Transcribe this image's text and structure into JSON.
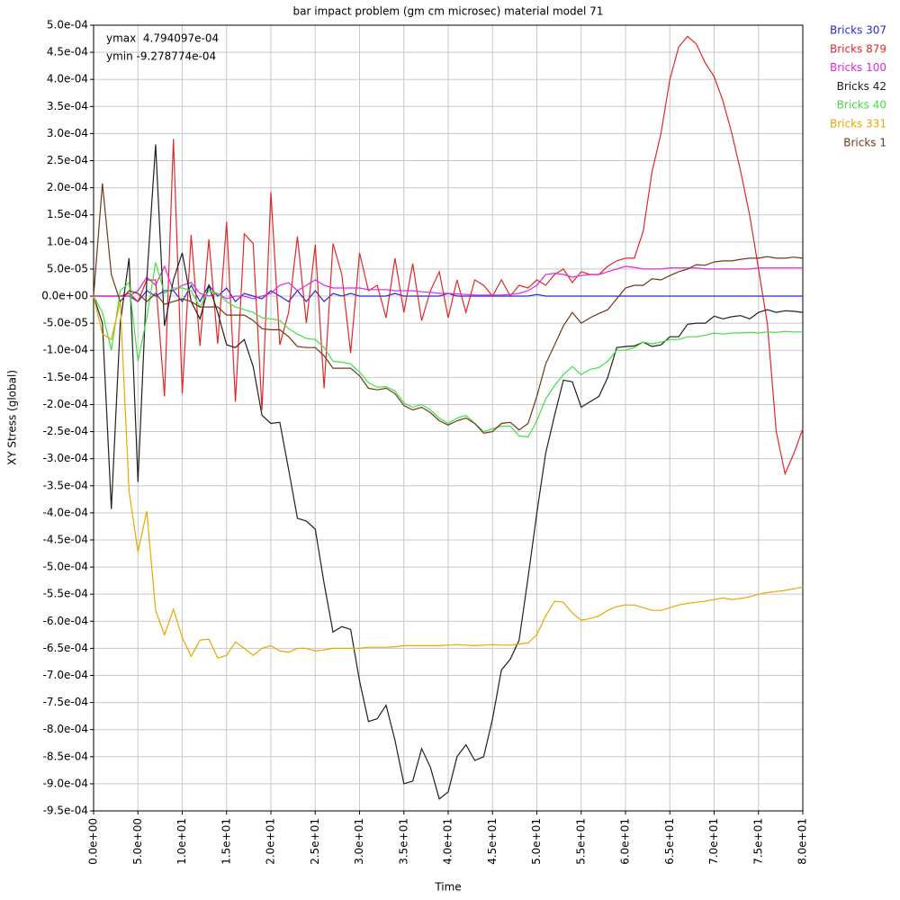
{
  "chart_data": {
    "type": "line",
    "title": "bar impact problem (gm cm microsec) material model 71",
    "xlabel": "Time",
    "ylabel": "XY Stress (global)",
    "annotations": [
      "ymax  4.794097e-04",
      "ymin -9.278774e-04"
    ],
    "grid": true,
    "x": [
      0,
      1,
      2,
      3,
      4,
      5,
      6,
      7,
      8,
      9,
      10,
      11,
      12,
      13,
      14,
      15,
      16,
      17,
      18,
      19,
      20,
      21,
      22,
      23,
      24,
      25,
      26,
      27,
      28,
      29,
      30,
      31,
      32,
      33,
      34,
      35,
      36,
      37,
      38,
      39,
      40,
      41,
      42,
      43,
      44,
      45,
      46,
      47,
      48,
      49,
      50,
      51,
      52,
      53,
      54,
      55,
      56,
      57,
      58,
      59,
      60,
      61,
      62,
      63,
      64,
      65,
      66,
      67,
      68,
      69,
      70,
      71,
      72,
      73,
      74,
      75,
      76,
      77,
      78,
      79,
      80
    ],
    "xlim": [
      0,
      80
    ],
    "xticks": [
      {
        "value": 0,
        "label": "0.0e+00"
      },
      {
        "value": 5,
        "label": "5.0e+00"
      },
      {
        "value": 10,
        "label": "1.0e+01"
      },
      {
        "value": 15,
        "label": "1.5e+01"
      },
      {
        "value": 20,
        "label": "2.0e+01"
      },
      {
        "value": 25,
        "label": "2.5e+01"
      },
      {
        "value": 30,
        "label": "3.0e+01"
      },
      {
        "value": 35,
        "label": "3.5e+01"
      },
      {
        "value": 40,
        "label": "4.0e+01"
      },
      {
        "value": 45,
        "label": "4.5e+01"
      },
      {
        "value": 50,
        "label": "5.0e+01"
      },
      {
        "value": 55,
        "label": "5.5e+01"
      },
      {
        "value": 60,
        "label": "6.0e+01"
      },
      {
        "value": 65,
        "label": "6.5e+01"
      },
      {
        "value": 70,
        "label": "7.0e+01"
      },
      {
        "value": 75,
        "label": "7.5e+01"
      },
      {
        "value": 80,
        "label": "8.0e+01"
      }
    ],
    "ylim": [
      -0.00095,
      0.0005
    ],
    "yticks": [
      {
        "value": 0.0005,
        "label": "5.0e-04"
      },
      {
        "value": 0.00045,
        "label": "4.5e-04"
      },
      {
        "value": 0.0004,
        "label": "4.0e-04"
      },
      {
        "value": 0.00035,
        "label": "3.5e-04"
      },
      {
        "value": 0.0003,
        "label": "3.0e-04"
      },
      {
        "value": 0.00025,
        "label": "2.5e-04"
      },
      {
        "value": 0.0002,
        "label": "2.0e-04"
      },
      {
        "value": 0.00015,
        "label": "1.5e-04"
      },
      {
        "value": 0.0001,
        "label": "1.0e-04"
      },
      {
        "value": 5e-05,
        "label": "5.0e-05"
      },
      {
        "value": 0,
        "label": "0.0e+00"
      },
      {
        "value": -5e-05,
        "label": "-5.0e-05"
      },
      {
        "value": -0.0001,
        "label": "-1.0e-04"
      },
      {
        "value": -0.00015,
        "label": "-1.5e-04"
      },
      {
        "value": -0.0002,
        "label": "-2.0e-04"
      },
      {
        "value": -0.00025,
        "label": "-2.5e-04"
      },
      {
        "value": -0.0003,
        "label": "-3.0e-04"
      },
      {
        "value": -0.00035,
        "label": "-3.5e-04"
      },
      {
        "value": -0.0004,
        "label": "-4.0e-04"
      },
      {
        "value": -0.00045,
        "label": "-4.5e-04"
      },
      {
        "value": -0.0005,
        "label": "-5.0e-04"
      },
      {
        "value": -0.00055,
        "label": "-5.5e-04"
      },
      {
        "value": -0.0006,
        "label": "-6.0e-04"
      },
      {
        "value": -0.00065,
        "label": "-6.5e-04"
      },
      {
        "value": -0.0007,
        "label": "-7.0e-04"
      },
      {
        "value": -0.00075,
        "label": "-7.5e-04"
      },
      {
        "value": -0.0008,
        "label": "-8.0e-04"
      },
      {
        "value": -0.00085,
        "label": "-8.5e-04"
      },
      {
        "value": -0.0009,
        "label": "-9.0e-04"
      },
      {
        "value": -0.00095,
        "label": "-9.5e-04"
      }
    ],
    "series": [
      {
        "name": "Bricks 307",
        "color": "#2828d8",
        "values": [
          0,
          0,
          0,
          0,
          0,
          -1e-05,
          1e-05,
          0,
          1e-05,
          1e-05,
          -1e-05,
          2e-05,
          -1e-05,
          2e-05,
          0,
          1.5e-05,
          -1e-05,
          5e-06,
          0,
          -5e-06,
          1e-05,
          0,
          -1e-05,
          1e-05,
          -1e-05,
          1e-05,
          -1e-05,
          5e-06,
          0,
          5e-06,
          0,
          0,
          0,
          0,
          5e-06,
          0,
          0,
          0,
          0,
          0,
          5e-06,
          0,
          0,
          0,
          0,
          0,
          0,
          0,
          0,
          0,
          3e-06,
          0,
          0,
          0,
          0,
          0,
          0,
          0,
          0,
          0,
          0,
          0,
          0,
          0,
          0,
          0,
          0,
          0,
          0,
          0,
          0,
          0,
          0,
          0,
          0,
          0,
          0,
          0,
          0,
          0,
          0
        ]
      },
      {
        "name": "Bricks 879",
        "color": "#e02828",
        "values": [
          0,
          0,
          0,
          0,
          5e-06,
          -1e-05,
          3e-05,
          3e-05,
          -0.000185,
          0.00029,
          -0.00018,
          0.000113,
          -9.2e-05,
          0.000105,
          -8.8e-05,
          0.000137,
          -0.000195,
          0.000115,
          9.7e-05,
          -0.00021,
          0.000192,
          -9e-05,
          -3e-05,
          0.00011,
          -5e-05,
          9.5e-05,
          -0.00017,
          9.7e-05,
          4e-05,
          -0.000105,
          8e-05,
          1e-05,
          2e-05,
          -4e-05,
          7e-05,
          -3e-05,
          6e-05,
          -4.5e-05,
          1e-05,
          4.5e-05,
          -4e-05,
          3e-05,
          -3e-05,
          3e-05,
          2e-05,
          0,
          3e-05,
          0,
          2e-05,
          1.5e-05,
          3e-05,
          2e-05,
          4e-05,
          5e-05,
          2.5e-05,
          4.5e-05,
          4e-05,
          4e-05,
          5.5e-05,
          6.5e-05,
          7e-05,
          7e-05,
          0.00012,
          0.00023,
          0.0003,
          0.0004,
          0.00046,
          0.0004794097,
          0.000465,
          0.00043,
          0.000405,
          0.00036,
          0.0003,
          0.00023,
          0.00015,
          5e-05,
          -5e-05,
          -0.00025,
          -0.000328,
          -0.00029,
          -0.000245
        ]
      },
      {
        "name": "Bricks 100",
        "color": "#e028e0",
        "values": [
          0,
          0,
          0,
          0,
          0,
          1e-05,
          3.5e-05,
          2e-05,
          5.5e-05,
          1e-05,
          2e-05,
          2.5e-05,
          5e-06,
          0,
          5e-06,
          -5e-06,
          0,
          0,
          -5e-06,
          0,
          5e-06,
          2e-05,
          2.5e-05,
          1e-05,
          2e-05,
          3e-05,
          2e-05,
          1.5e-05,
          1.5e-05,
          1.5e-05,
          1.5e-05,
          1.2e-05,
          1.2e-05,
          1.2e-05,
          1e-05,
          1e-05,
          1e-05,
          8e-06,
          7e-06,
          5e-06,
          5e-06,
          4e-06,
          3e-06,
          2e-06,
          2e-06,
          2e-06,
          2e-06,
          3e-06,
          5e-06,
          1e-05,
          2e-05,
          4e-05,
          4.2e-05,
          4e-05,
          3.5e-05,
          3.8e-05,
          4e-05,
          4e-05,
          4.5e-05,
          5e-05,
          5.5e-05,
          5.3e-05,
          5e-05,
          5e-05,
          5e-05,
          5.2e-05,
          5.2e-05,
          5.2e-05,
          5.2e-05,
          5e-05,
          5e-05,
          5e-05,
          5e-05,
          5e-05,
          5e-05,
          5.2e-05,
          5.2e-05,
          5.2e-05,
          5.2e-05,
          5.2e-05,
          5.2e-05
        ]
      },
      {
        "name": "Bricks 42",
        "color": "#202020",
        "values": [
          0,
          -5e-05,
          -0.000393,
          -5e-05,
          7e-05,
          -0.000343,
          3e-05,
          0.00028,
          -5.5e-05,
          3e-05,
          8e-05,
          -1e-05,
          -4.2e-05,
          2e-05,
          -3e-05,
          -9e-05,
          -9.5e-05,
          -8e-05,
          -0.00013,
          -0.00022,
          -0.000235,
          -0.000233,
          -0.00032,
          -0.00041,
          -0.000415,
          -0.00043,
          -0.00053,
          -0.00062,
          -0.00061,
          -0.000615,
          -0.00071,
          -0.000785,
          -0.00078,
          -0.000755,
          -0.00082,
          -0.0009,
          -0.000895,
          -0.000835,
          -0.00087,
          -0.0009278774,
          -0.000915,
          -0.00085,
          -0.000828,
          -0.000857,
          -0.00085,
          -0.00078,
          -0.00069,
          -0.00067,
          -0.000635,
          -0.00052,
          -0.0004,
          -0.00029,
          -0.00022,
          -0.000155,
          -0.000158,
          -0.000205,
          -0.000195,
          -0.000185,
          -0.00015,
          -9.5e-05,
          -9.3e-05,
          -9.2e-05,
          -8.5e-05,
          -9.3e-05,
          -9e-05,
          -7.5e-05,
          -7.5e-05,
          -5.2e-05,
          -5e-05,
          -5e-05,
          -3.7e-05,
          -4.2e-05,
          -3.8e-05,
          -3.6e-05,
          -4.2e-05,
          -3e-05,
          -2.5e-05,
          -3e-05,
          -2.7e-05,
          -2.8e-05,
          -3e-05
        ]
      },
      {
        "name": "Bricks 40",
        "color": "#40e040",
        "values": [
          0,
          -3e-05,
          -0.0001,
          1e-05,
          2.5e-05,
          -0.00012,
          -4e-05,
          6.2e-05,
          5e-06,
          1.5e-05,
          1.5e-05,
          1e-05,
          -2e-05,
          1e-05,
          5e-06,
          -1e-05,
          -2e-05,
          -2.5e-05,
          -3e-05,
          -4e-05,
          -4.2e-05,
          -4.5e-05,
          -6e-05,
          -7e-05,
          -7.8e-05,
          -8e-05,
          -9.5e-05,
          -0.00012,
          -0.000122,
          -0.000125,
          -0.00014,
          -0.00016,
          -0.000168,
          -0.000167,
          -0.000175,
          -0.000197,
          -0.000205,
          -0.0002,
          -0.00021,
          -0.000225,
          -0.000235,
          -0.000225,
          -0.00022,
          -0.000235,
          -0.00025,
          -0.000245,
          -0.00024,
          -0.00024,
          -0.000258,
          -0.00026,
          -0.00023,
          -0.00019,
          -0.000165,
          -0.000145,
          -0.00013,
          -0.000145,
          -0.000135,
          -0.000132,
          -0.00012,
          -0.0001,
          -0.0001,
          -9.5e-05,
          -8.5e-05,
          -8.8e-05,
          -8.5e-05,
          -8e-05,
          -8e-05,
          -7.5e-05,
          -7.5e-05,
          -7.2e-05,
          -6.8e-05,
          -7e-05,
          -6.8e-05,
          -6.8e-05,
          -6.7e-05,
          -6.8e-05,
          -6.6e-05,
          -6.7e-05,
          -6.5e-05,
          -6.6e-05,
          -6.6e-05
        ]
      },
      {
        "name": "Bricks 331",
        "color": "#e8a800",
        "values": [
          0,
          -7e-05,
          -8e-05,
          -1e-05,
          -0.00036,
          -0.000472,
          -0.000397,
          -0.00058,
          -0.000625,
          -0.000578,
          -0.00063,
          -0.000665,
          -0.000635,
          -0.000633,
          -0.000668,
          -0.000663,
          -0.000638,
          -0.00065,
          -0.000663,
          -0.00065,
          -0.000645,
          -0.000655,
          -0.000657,
          -0.00065,
          -0.00065,
          -0.000655,
          -0.000653,
          -0.00065,
          -0.00065,
          -0.00065,
          -0.00065,
          -0.000648,
          -0.000648,
          -0.000648,
          -0.000647,
          -0.000645,
          -0.000645,
          -0.000645,
          -0.000645,
          -0.000645,
          -0.000644,
          -0.000643,
          -0.000644,
          -0.000645,
          -0.000644,
          -0.000643,
          -0.000644,
          -0.000644,
          -0.000642,
          -0.00064,
          -0.000625,
          -0.00059,
          -0.000563,
          -0.000565,
          -0.000585,
          -0.000598,
          -0.000595,
          -0.00059,
          -0.00058,
          -0.000573,
          -0.00057,
          -0.00057,
          -0.000575,
          -0.00058,
          -0.00058,
          -0.000575,
          -0.00057,
          -0.000567,
          -0.000565,
          -0.000563,
          -0.00056,
          -0.000557,
          -0.00056,
          -0.000558,
          -0.000555,
          -0.00055,
          -0.000547,
          -0.000545,
          -0.000543,
          -0.00054,
          -0.000537
        ]
      },
      {
        "name": "Bricks 1",
        "color": "#703818",
        "values": [
          0,
          0.000208,
          4e-05,
          -1e-05,
          1e-05,
          5e-06,
          -1e-05,
          5e-06,
          -1.5e-05,
          -1e-05,
          -5e-06,
          -1e-05,
          -2e-05,
          -2e-05,
          -2e-05,
          -3.5e-05,
          -3.5e-05,
          -3.5e-05,
          -4.5e-05,
          -6e-05,
          -6.2e-05,
          -6.2e-05,
          -7.5e-05,
          -9.3e-05,
          -9.5e-05,
          -9.5e-05,
          -0.00011,
          -0.000133,
          -0.000133,
          -0.000133,
          -0.000147,
          -0.00017,
          -0.000173,
          -0.00017,
          -0.00018,
          -0.000202,
          -0.00021,
          -0.000205,
          -0.000215,
          -0.00023,
          -0.000238,
          -0.00023,
          -0.000225,
          -0.000235,
          -0.000253,
          -0.00025,
          -0.000235,
          -0.000233,
          -0.000247,
          -0.000235,
          -0.000185,
          -0.000125,
          -9e-05,
          -5.5e-05,
          -3e-05,
          -5e-05,
          -4e-05,
          -3.2e-05,
          -2.5e-05,
          -5e-06,
          1.5e-05,
          2e-05,
          2e-05,
          3.2e-05,
          3e-05,
          3.8e-05,
          4.5e-05,
          5e-05,
          5.8e-05,
          5.7e-05,
          6.3e-05,
          6.5e-05,
          6.5e-05,
          6.8e-05,
          7e-05,
          7e-05,
          7.3e-05,
          7e-05,
          7e-05,
          7.2e-05,
          7e-05
        ]
      }
    ]
  }
}
